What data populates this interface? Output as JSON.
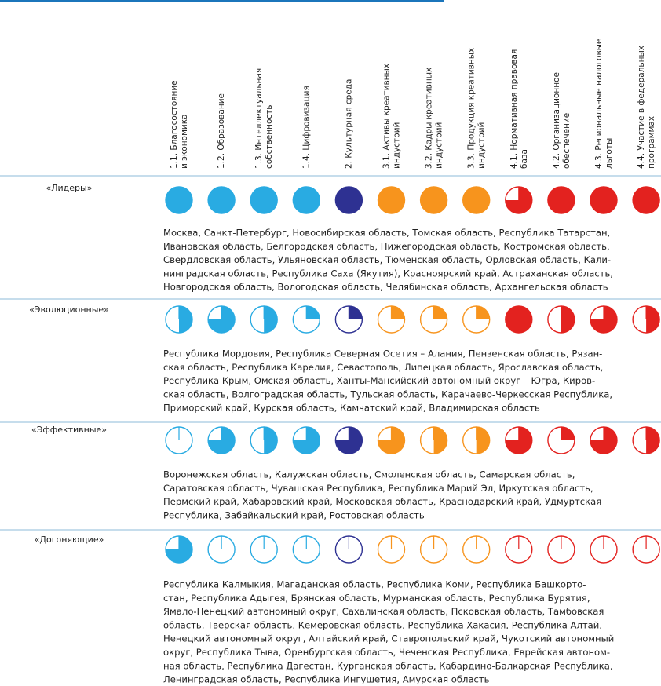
{
  "columns": [
    {
      "lines": [
        "1.1. Благосостояние",
        "и экономика"
      ],
      "color": "#29abe2"
    },
    {
      "lines": [
        "1.2. Образование"
      ],
      "color": "#29abe2"
    },
    {
      "lines": [
        "1.3. Интеллектуальная",
        "собственность"
      ],
      "color": "#29abe2"
    },
    {
      "lines": [
        "1.4. Цифровизация"
      ],
      "color": "#29abe2"
    },
    {
      "lines": [
        "2. Культурная среда"
      ],
      "color": "#2e3192"
    },
    {
      "lines": [
        "3.1. Активы креативных",
        "индустрий"
      ],
      "color": "#f7941d"
    },
    {
      "lines": [
        "3.2. Кадры креативных",
        "индустрий"
      ],
      "color": "#f7941d"
    },
    {
      "lines": [
        "3.3. Продукция креативных",
        "индустрий"
      ],
      "color": "#f7941d"
    },
    {
      "lines": [
        "4.1. Нормативная правовая",
        "база"
      ],
      "color": "#e3221f"
    },
    {
      "lines": [
        "4.2. Организационное",
        "обеспечение"
      ],
      "color": "#e3221f"
    },
    {
      "lines": [
        "4.3. Региональные налоговые",
        "льготы"
      ],
      "color": "#e3221f"
    },
    {
      "lines": [
        "4.4. Участие в федеральных",
        "программах"
      ],
      "color": "#e3221f"
    }
  ],
  "rows": [
    {
      "label": "«Лидеры»",
      "values": [
        1,
        1,
        1,
        1,
        1,
        1,
        1,
        1,
        0.75,
        1,
        1,
        1
      ],
      "regions": [
        "Москва, Санкт-Петербург, Новосибирская область, Томская область, Республика Татарстан,",
        "Ивановская область, Белгородская область, Нижегородская область, Костромская область,",
        "Свердловская область, Ульяновская область, Тюменская область, Орловская область, Кали-",
        "нинградская область, Республика Саха (Якутия), Красноярский край, Астраханская область,",
        "Новгородская область, Вологодская область, Челябинская область, Архангельская область"
      ]
    },
    {
      "label": "«Эволюционные»",
      "values": [
        0.5,
        0.75,
        0.5,
        0.25,
        0.25,
        0.25,
        0.25,
        0.25,
        1,
        0.5,
        0.75,
        0.5
      ],
      "regions": [
        "Республика Мордовия, Республика Северная Осетия – Алания, Пензенская область, Рязан-",
        "ская область, Республика Карелия, Севастополь, Липецкая область, Ярославская область,",
        "Республика Крым, Омская область, Ханты-Мансийский автономный округ – Югра, Киров-",
        "ская область, Волгоградская область, Тульская область, Карачаево-Черкесская Республика,",
        "Приморский край, Курская область, Камчатский край, Владимирская область"
      ]
    },
    {
      "label": "«Эффективные»",
      "values": [
        0,
        0.75,
        0.5,
        0.75,
        0.75,
        0.75,
        0.5,
        0.5,
        0.75,
        0.25,
        0.75,
        0.5
      ],
      "regions": [
        "Воронежская область, Калужская область, Смоленская область, Самарская область,",
        "Саратовская область, Чувашская Республика, Республика Марий Эл, Иркутская область,",
        "Пермский край, Хабаровский край, Московская область, Краснодарский край, Удмуртская",
        "Республика, Забайкальский край, Ростовская область"
      ]
    },
    {
      "label": "«Догоняющие»",
      "values": [
        0.75,
        0,
        0,
        0,
        0,
        0,
        0,
        0,
        0,
        0,
        0,
        0
      ],
      "regions": [
        "Республика Калмыкия, Магаданская область, Республика Коми, Республика Башкорто-",
        "стан, Республика Адыгея, Брянская область, Мурманская область, Республика Бурятия,",
        "Ямало-Ненецкий автономный округ, Сахалинская область, Псковская область, Тамбовская",
        "область, Тверская область, Кемеровская область, Республика Хакасия, Республика Алтай,",
        "Ненецкий автономный округ, Алтайский край, Ставропольский край, Чукотский автономный",
        "округ, Республика Тыва, Оренбургская область, Чеченская Республика, Еврейская автоном-",
        "ная область, Республика Дагестан, Курганская область, Кабардино-Балкарская Республика,",
        "Ленинградская область, Республика Ингушетия, Амурская область"
      ]
    }
  ]
}
